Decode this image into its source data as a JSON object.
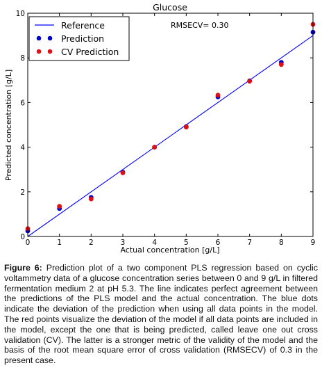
{
  "chart_data": {
    "type": "scatter",
    "title": "Glucose",
    "xlabel": "Actual concentration [g/L]",
    "ylabel": "Predicted concentration [g/L]",
    "xlim": [
      0,
      9
    ],
    "ylim": [
      0,
      10
    ],
    "xticks": [
      "0",
      "1",
      "2",
      "3",
      "4",
      "5",
      "6",
      "7",
      "8",
      "9"
    ],
    "yticks": [
      "0",
      "2",
      "4",
      "6",
      "8",
      "10"
    ],
    "grid": false,
    "legend_position": "top-left",
    "annotation": "RMSECV= 0.30",
    "reference": {
      "name": "Reference",
      "x": [
        0,
        9
      ],
      "y": [
        0,
        9
      ],
      "color": "#0000ff"
    },
    "series": [
      {
        "name": "Prediction",
        "color": "#0000cc",
        "x": [
          0,
          1,
          2,
          3,
          4,
          5,
          6,
          7,
          8,
          9
        ],
        "y": [
          0.25,
          1.25,
          1.75,
          2.88,
          4.0,
          4.92,
          6.25,
          6.97,
          7.8,
          9.15
        ]
      },
      {
        "name": "CV Prediction",
        "color": "#dd1111",
        "x": [
          0,
          1,
          2,
          3,
          4,
          5,
          6,
          7,
          8,
          9
        ],
        "y": [
          0.35,
          1.35,
          1.68,
          2.85,
          4.0,
          4.9,
          6.33,
          6.95,
          7.7,
          9.5
        ]
      }
    ]
  },
  "caption": {
    "label": "Figure 6:",
    "text": " Prediction plot of a two component PLS regression based on cyclic voltammetry data of a glucose concentration series between 0 and 9 g/L in filtered fermentation medium 2 at pH 5.3. The line indicates perfect agreement between the predictions of the PLS model and the actual concentration. The blue dots indicate the deviation of the prediction when using all data points in the model. The red points visualize the deviation of the model if all data points are included in the model, except the one that is being predicted, called leave one out cross validation (CV). The latter is a stronger metric of the validity of the model and the basis of the root mean square error of cross validation (RMSECV) of 0.3 in the present case."
  }
}
